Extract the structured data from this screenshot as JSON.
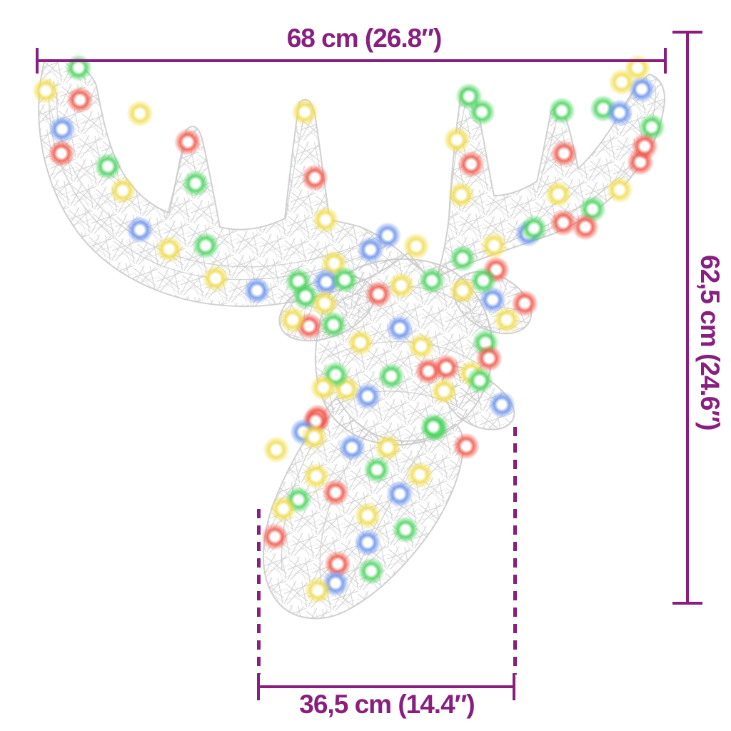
{
  "page": {
    "background": "#ffffff"
  },
  "figure": {
    "alt": "Acrylic reindeer head decoration with multicolour LED lights",
    "wire_color": "#c9c9c9",
    "led_palette": {
      "y": "#f0dd4c",
      "r": "#f25548",
      "g": "#46d45b",
      "b": "#6a92f0"
    },
    "leds": [
      [
        110,
        95,
        "g"
      ],
      [
        64,
        127,
        "y"
      ],
      [
        112,
        140,
        "r"
      ],
      [
        87,
        181,
        "b"
      ],
      [
        86,
        215,
        "r"
      ],
      [
        151,
        233,
        "g"
      ],
      [
        172,
        267,
        "y"
      ],
      [
        196,
        322,
        "b"
      ],
      [
        237,
        349,
        "y"
      ],
      [
        288,
        344,
        "g"
      ],
      [
        302,
        390,
        "y"
      ],
      [
        360,
        407,
        "b"
      ],
      [
        418,
        394,
        "g"
      ],
      [
        468,
        369,
        "y"
      ],
      [
        519,
        350,
        "b"
      ],
      [
        196,
        159,
        "y"
      ],
      [
        263,
        199,
        "r"
      ],
      [
        274,
        257,
        "g"
      ],
      [
        427,
        157,
        "y"
      ],
      [
        441,
        249,
        "r"
      ],
      [
        456,
        308,
        "y"
      ],
      [
        543,
        330,
        "b"
      ],
      [
        583,
        345,
        "y"
      ],
      [
        648,
        362,
        "g"
      ],
      [
        692,
        344,
        "y"
      ],
      [
        740,
        327,
        "b"
      ],
      [
        789,
        312,
        "r"
      ],
      [
        830,
        293,
        "g"
      ],
      [
        868,
        266,
        "y"
      ],
      [
        897,
        227,
        "r"
      ],
      [
        913,
        178,
        "g"
      ],
      [
        899,
        125,
        "b"
      ],
      [
        871,
        115,
        "y"
      ],
      [
        893,
        95,
        "y"
      ],
      [
        845,
        152,
        "g"
      ],
      [
        868,
        158,
        "b"
      ],
      [
        903,
        205,
        "r"
      ],
      [
        657,
        135,
        "g"
      ],
      [
        675,
        157,
        "g"
      ],
      [
        640,
        196,
        "y"
      ],
      [
        660,
        230,
        "r"
      ],
      [
        646,
        273,
        "y"
      ],
      [
        787,
        155,
        "g"
      ],
      [
        790,
        215,
        "r"
      ],
      [
        782,
        272,
        "y"
      ],
      [
        748,
        320,
        "g"
      ],
      [
        820,
        318,
        "r"
      ],
      [
        428,
        415,
        "g"
      ],
      [
        457,
        395,
        "b"
      ],
      [
        455,
        425,
        "y"
      ],
      [
        433,
        457,
        "r"
      ],
      [
        467,
        455,
        "g"
      ],
      [
        410,
        448,
        "y"
      ],
      [
        690,
        420,
        "b"
      ],
      [
        695,
        378,
        "r"
      ],
      [
        677,
        393,
        "g"
      ],
      [
        710,
        448,
        "y"
      ],
      [
        735,
        425,
        "r"
      ],
      [
        483,
        392,
        "g"
      ],
      [
        530,
        412,
        "r"
      ],
      [
        562,
        400,
        "y"
      ],
      [
        605,
        393,
        "g"
      ],
      [
        648,
        407,
        "y"
      ],
      [
        505,
        480,
        "y"
      ],
      [
        560,
        460,
        "b"
      ],
      [
        590,
        485,
        "y"
      ],
      [
        625,
        515,
        "r"
      ],
      [
        660,
        523,
        "y"
      ],
      [
        680,
        480,
        "g"
      ],
      [
        548,
        527,
        "g"
      ],
      [
        515,
        555,
        "b"
      ],
      [
        485,
        545,
        "y"
      ],
      [
        470,
        525,
        "g"
      ],
      [
        445,
        585,
        "r"
      ],
      [
        622,
        548,
        "y"
      ],
      [
        600,
        520,
        "r"
      ],
      [
        685,
        502,
        "r"
      ],
      [
        672,
        533,
        "g"
      ],
      [
        703,
        567,
        "b"
      ],
      [
        653,
        625,
        "r"
      ],
      [
        610,
        600,
        "g"
      ],
      [
        453,
        543,
        "y"
      ],
      [
        442,
        590,
        "r"
      ],
      [
        425,
        605,
        "b"
      ],
      [
        440,
        612,
        "y"
      ],
      [
        493,
        627,
        "b"
      ],
      [
        543,
        627,
        "y"
      ],
      [
        607,
        598,
        "g"
      ],
      [
        387,
        630,
        "y"
      ],
      [
        528,
        658,
        "g"
      ],
      [
        588,
        665,
        "y"
      ],
      [
        443,
        667,
        "y"
      ],
      [
        470,
        690,
        "r"
      ],
      [
        418,
        700,
        "g"
      ],
      [
        397,
        713,
        "y"
      ],
      [
        560,
        692,
        "b"
      ],
      [
        385,
        752,
        "r"
      ],
      [
        515,
        722,
        "y"
      ],
      [
        568,
        742,
        "g"
      ],
      [
        515,
        760,
        "b"
      ],
      [
        473,
        790,
        "r"
      ],
      [
        470,
        817,
        "b"
      ],
      [
        445,
        827,
        "y"
      ],
      [
        520,
        800,
        "g"
      ]
    ]
  },
  "dimensions": {
    "color": "#881e7e",
    "top_width": "68 cm (26.8″)",
    "right_height": "62,5 cm (24.6″)",
    "bottom_width": "36,5 cm (14.4″)"
  }
}
